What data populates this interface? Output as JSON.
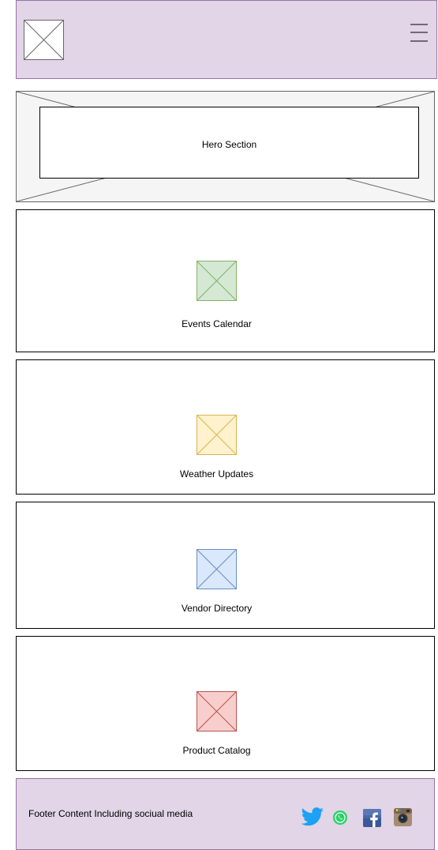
{
  "header": {
    "logo_icon": "image-placeholder-icon",
    "menu_icon": "hamburger-menu-icon"
  },
  "hero": {
    "label": "Hero Section"
  },
  "sections": [
    {
      "label": "Events Calendar",
      "icon": "image-placeholder-icon",
      "fill": "#d5e8d4",
      "stroke": "#82b366"
    },
    {
      "label": "Weather Updates",
      "icon": "image-placeholder-icon",
      "fill": "#fff2cc",
      "stroke": "#d6b656"
    },
    {
      "label": "Vendor Directory",
      "icon": "image-placeholder-icon",
      "fill": "#dae8fc",
      "stroke": "#6c8ebf"
    },
    {
      "label": "Product Catalog",
      "icon": "image-placeholder-icon",
      "fill": "#f8cecc",
      "stroke": "#b85450"
    }
  ],
  "footer": {
    "text": "Footer Content Including sociual media",
    "social": [
      "twitter-icon",
      "whatsapp-icon",
      "facebook-icon",
      "instagram-icon"
    ]
  },
  "colors": {
    "header_fill": "#e1d5e7",
    "header_stroke": "#9673a6",
    "hero_fill": "#f5f5f5",
    "twitter": "#1da1f2",
    "whatsapp": "#25d366",
    "facebook": "#3b5998"
  }
}
